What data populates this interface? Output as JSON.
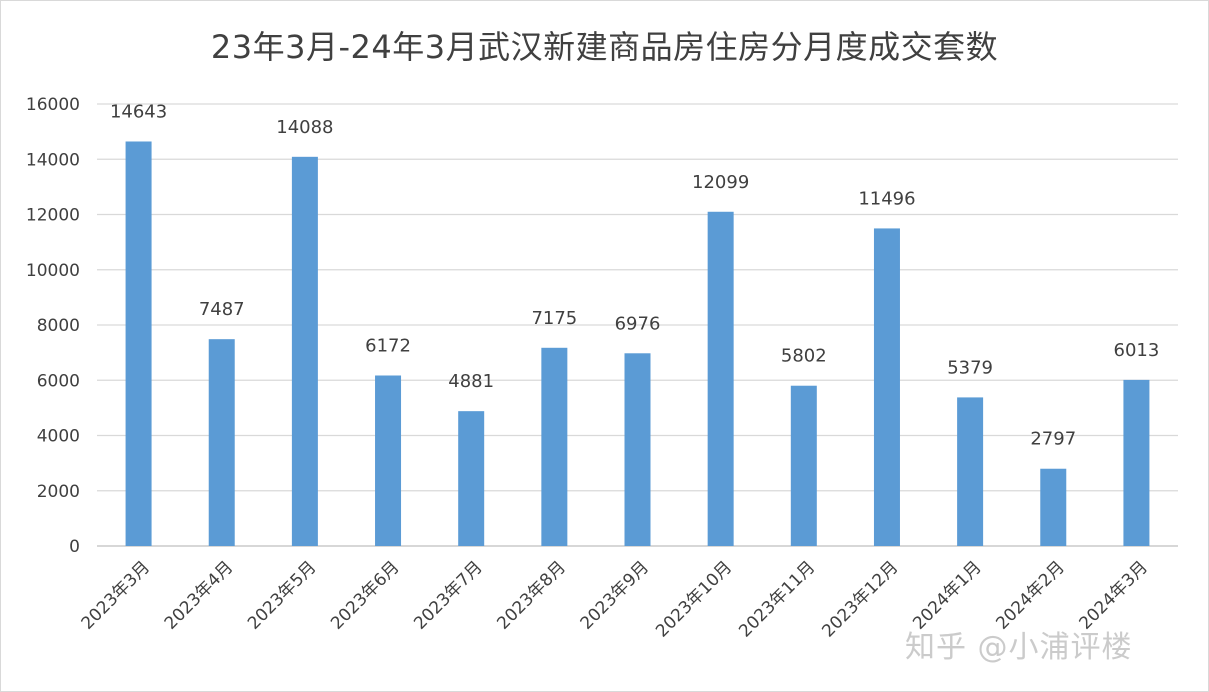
{
  "chart_data": {
    "type": "bar",
    "title": "23年3月-24年3月武汉新建商品房住房分月度成交套数",
    "categories": [
      "2023年3月",
      "2023年4月",
      "2023年5月",
      "2023年6月",
      "2023年7月",
      "2023年8月",
      "2023年9月",
      "2023年10月",
      "2023年11月",
      "2023年12月",
      "2024年1月",
      "2024年2月",
      "2024年3月"
    ],
    "values": [
      14643,
      7487,
      14088,
      6172,
      4881,
      7175,
      6976,
      12099,
      5802,
      11496,
      5379,
      2797,
      6013
    ],
    "ylim": [
      0,
      16000
    ],
    "yticks": [
      0,
      2000,
      4000,
      6000,
      8000,
      10000,
      12000,
      14000,
      16000
    ],
    "xlabel": "",
    "ylabel": "",
    "grid": true,
    "legend": "none",
    "bar_color": "#5b9bd5",
    "data_labels": true
  },
  "watermark": "知乎 @小浦评楼"
}
